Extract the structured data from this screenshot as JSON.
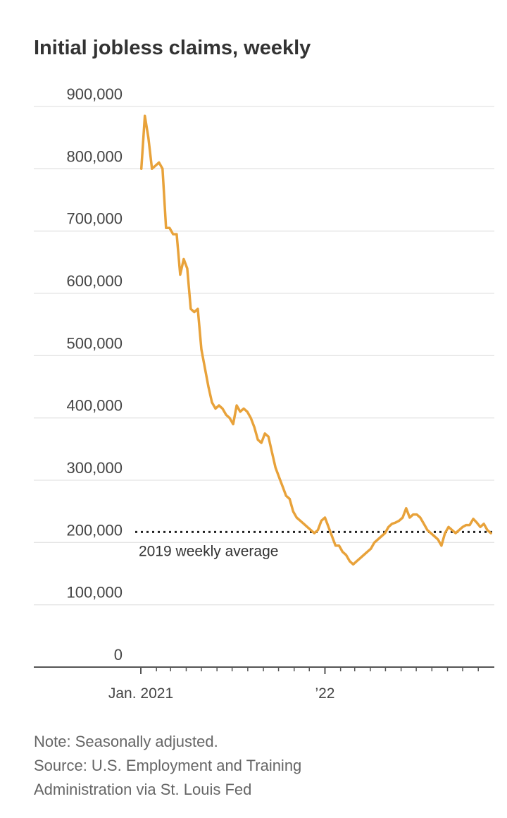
{
  "chart_data": {
    "type": "line",
    "title": "Initial jobless claims, weekly",
    "xlabel": "",
    "ylabel": "",
    "ylim": [
      0,
      900000
    ],
    "xlim": [
      "2021-01-01",
      "2022-11-30"
    ],
    "y_ticks": [
      {
        "value": 0,
        "label": "0"
      },
      {
        "value": 100000,
        "label": "100,000"
      },
      {
        "value": 200000,
        "label": "200,000"
      },
      {
        "value": 300000,
        "label": "300,000"
      },
      {
        "value": 400000,
        "label": "400,000"
      },
      {
        "value": 500000,
        "label": "500,000"
      },
      {
        "value": 600000,
        "label": "600,000"
      },
      {
        "value": 700000,
        "label": "700,000"
      },
      {
        "value": 800000,
        "label": "800,000"
      },
      {
        "value": 900000,
        "label": "900,000"
      }
    ],
    "x_ticks": [
      {
        "value": "2021-01-01",
        "label": "Jan. 2021"
      },
      {
        "value": "2022-01-01",
        "label": "’22"
      }
    ],
    "grid": true,
    "series": [
      {
        "color": "#e8a23a",
        "x": [
          "2021-01-02",
          "2021-01-09",
          "2021-01-16",
          "2021-01-23",
          "2021-01-30",
          "2021-02-06",
          "2021-02-13",
          "2021-02-20",
          "2021-02-27",
          "2021-03-06",
          "2021-03-13",
          "2021-03-20",
          "2021-03-27",
          "2021-04-03",
          "2021-04-10",
          "2021-04-17",
          "2021-04-24",
          "2021-05-01",
          "2021-05-08",
          "2021-05-15",
          "2021-05-22",
          "2021-05-29",
          "2021-06-05",
          "2021-06-12",
          "2021-06-19",
          "2021-06-26",
          "2021-07-03",
          "2021-07-10",
          "2021-07-17",
          "2021-07-24",
          "2021-07-31",
          "2021-08-07",
          "2021-08-14",
          "2021-08-21",
          "2021-08-28",
          "2021-09-04",
          "2021-09-11",
          "2021-09-18",
          "2021-09-25",
          "2021-10-02",
          "2021-10-09",
          "2021-10-16",
          "2021-10-23",
          "2021-10-30",
          "2021-11-06",
          "2021-11-13",
          "2021-11-20",
          "2021-11-27",
          "2021-12-04",
          "2021-12-11",
          "2021-12-18",
          "2021-12-25",
          "2022-01-01",
          "2022-01-08",
          "2022-01-15",
          "2022-01-22",
          "2022-01-29",
          "2022-02-05",
          "2022-02-12",
          "2022-02-19",
          "2022-02-26",
          "2022-03-05",
          "2022-03-12",
          "2022-03-19",
          "2022-03-26",
          "2022-04-02",
          "2022-04-09",
          "2022-04-16",
          "2022-04-23",
          "2022-04-30",
          "2022-05-07",
          "2022-05-14",
          "2022-05-21",
          "2022-05-28",
          "2022-06-04",
          "2022-06-11",
          "2022-06-18",
          "2022-06-25",
          "2022-07-02",
          "2022-07-09",
          "2022-07-16",
          "2022-07-23",
          "2022-07-30",
          "2022-08-06",
          "2022-08-13",
          "2022-08-20",
          "2022-08-27",
          "2022-09-03",
          "2022-09-10",
          "2022-09-17",
          "2022-09-24",
          "2022-10-01",
          "2022-10-08",
          "2022-10-15",
          "2022-10-22",
          "2022-10-29",
          "2022-11-05",
          "2022-11-12",
          "2022-11-19",
          "2022-11-26"
        ],
        "values": [
          800000,
          885000,
          850000,
          800000,
          805000,
          810000,
          800000,
          705000,
          705000,
          695000,
          695000,
          630000,
          655000,
          640000,
          575000,
          570000,
          575000,
          510000,
          480000,
          450000,
          425000,
          415000,
          420000,
          415000,
          405000,
          400000,
          390000,
          420000,
          410000,
          415000,
          410000,
          400000,
          385000,
          365000,
          360000,
          375000,
          370000,
          345000,
          320000,
          305000,
          290000,
          275000,
          270000,
          250000,
          240000,
          235000,
          230000,
          225000,
          220000,
          215000,
          220000,
          235000,
          240000,
          225000,
          210000,
          195000,
          195000,
          185000,
          180000,
          170000,
          165000,
          170000,
          175000,
          180000,
          185000,
          190000,
          200000,
          205000,
          210000,
          215000,
          225000,
          230000,
          232000,
          235000,
          240000,
          255000,
          240000,
          245000,
          245000,
          240000,
          230000,
          220000,
          215000,
          210000,
          205000,
          195000,
          215000,
          225000,
          220000,
          215000,
          220000,
          225000,
          228000,
          228000,
          238000,
          232000,
          225000,
          230000,
          220000,
          215000
        ]
      }
    ],
    "annotations": [
      {
        "type": "hline",
        "value": 217000,
        "label": "2019 weekly average"
      }
    ]
  },
  "notes": {
    "note": "Note: Seasonally adjusted.",
    "source_line1": "Source: U.S. Employment and Training",
    "source_line2": "Administration via St. Louis Fed"
  }
}
